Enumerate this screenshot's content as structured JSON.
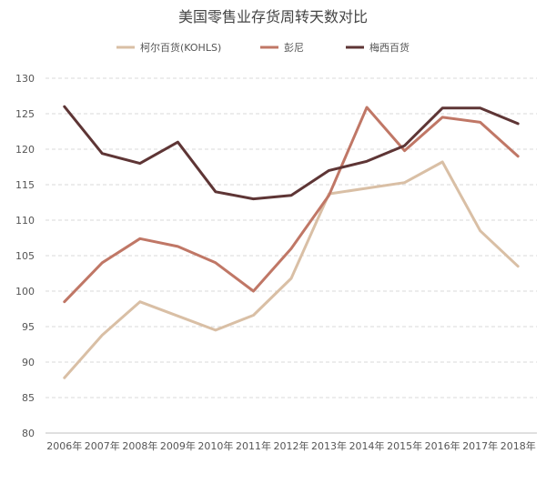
{
  "chart_data": {
    "type": "line",
    "title": "美国零售业存货周转天数对比",
    "xlabel": "",
    "ylabel": "",
    "categories": [
      "2006年",
      "2007年",
      "2008年",
      "2009年",
      "2010年",
      "2011年",
      "2012年",
      "2013年",
      "2014年",
      "2015年",
      "2016年",
      "2017年",
      "2018年"
    ],
    "ylim": [
      80,
      130
    ],
    "yticks": [
      80,
      85,
      90,
      95,
      100,
      105,
      110,
      115,
      120,
      125,
      130
    ],
    "grid": true,
    "legend_position": "top",
    "series": [
      {
        "name": "柯尔百货(KOHLS)",
        "color": "#d9bfa5",
        "values": [
          87.8,
          93.8,
          98.5,
          96.5,
          94.5,
          96.6,
          101.8,
          113.7,
          114.5,
          115.3,
          118.2,
          108.5,
          103.5
        ]
      },
      {
        "name": "彭尼",
        "color": "#c07766",
        "values": [
          98.5,
          104.0,
          107.4,
          106.3,
          104.0,
          100.0,
          106.0,
          113.5,
          125.9,
          119.8,
          124.5,
          123.8,
          119.0
        ]
      },
      {
        "name": "梅西百货",
        "color": "#5e3535",
        "values": [
          126.0,
          119.4,
          118.0,
          121.0,
          114.0,
          113.0,
          113.5,
          117.0,
          118.3,
          120.5,
          125.8,
          125.8,
          123.6
        ]
      }
    ]
  }
}
